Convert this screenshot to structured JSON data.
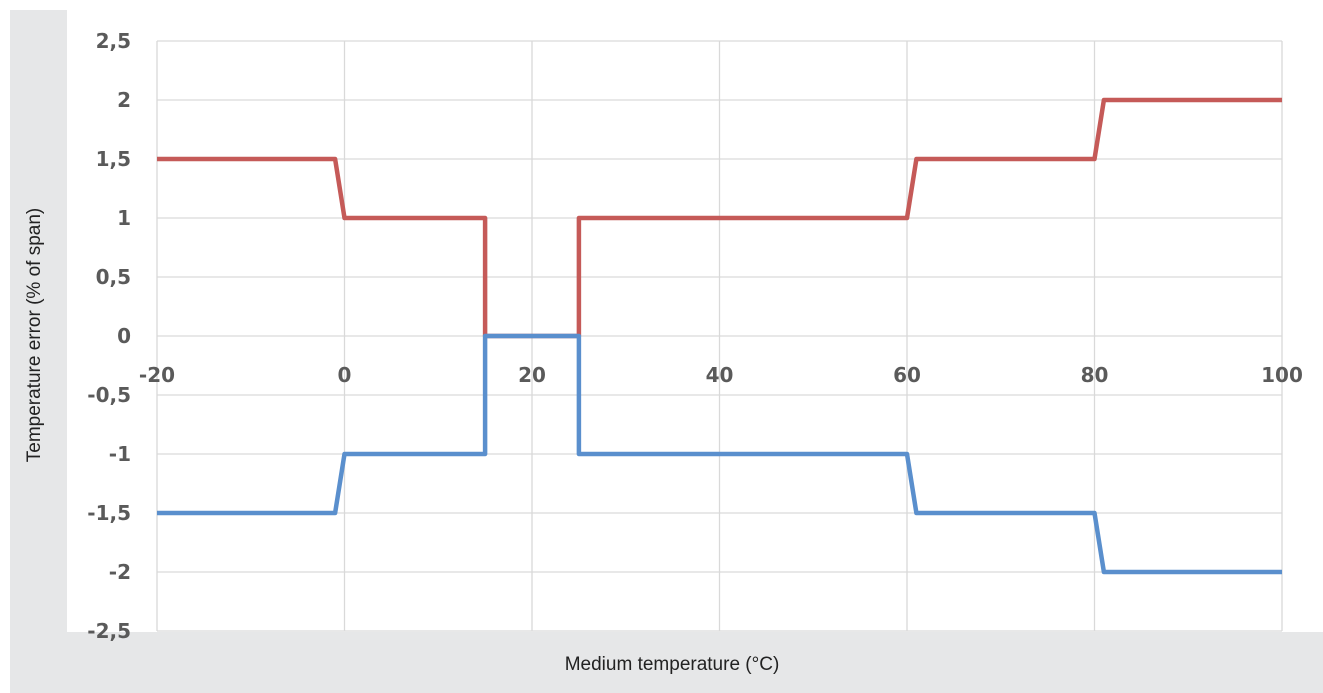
{
  "chart_data": {
    "type": "line",
    "title": "",
    "xlabel": "Medium temperature (°C)",
    "ylabel": "Temperature error (% of span)",
    "xlim": [
      -20,
      100
    ],
    "ylim": [
      -2.5,
      2.5
    ],
    "x_ticks": [
      "-20",
      "0",
      "20",
      "40",
      "60",
      "80",
      "100"
    ],
    "y_ticks": [
      "2,5",
      "2",
      "1,5",
      "1",
      "0,5",
      "0",
      "-0,5",
      "-1",
      "-1,5",
      "-2",
      "-2,5"
    ],
    "grid": true,
    "legend": "none",
    "series": [
      {
        "color": "#c55a58",
        "points": [
          [
            -20,
            1.5
          ],
          [
            -1,
            1.5
          ],
          [
            0,
            1.0
          ],
          [
            15,
            1.0
          ],
          [
            15,
            0.0
          ],
          [
            25,
            0.0
          ],
          [
            25,
            1.0
          ],
          [
            60,
            1.0
          ],
          [
            61,
            1.5
          ],
          [
            80,
            1.5
          ],
          [
            81,
            2.0
          ],
          [
            100,
            2.0
          ]
        ]
      },
      {
        "color": "#5a8fcd",
        "points": [
          [
            -20,
            -1.5
          ],
          [
            -1,
            -1.5
          ],
          [
            0,
            -1.0
          ],
          [
            15,
            -1.0
          ],
          [
            15,
            0.0
          ],
          [
            25,
            0.0
          ],
          [
            25,
            -1.0
          ],
          [
            60,
            -1.0
          ],
          [
            61,
            -1.5
          ],
          [
            80,
            -1.5
          ],
          [
            81,
            -2.0
          ],
          [
            100,
            -2.0
          ]
        ]
      }
    ]
  }
}
